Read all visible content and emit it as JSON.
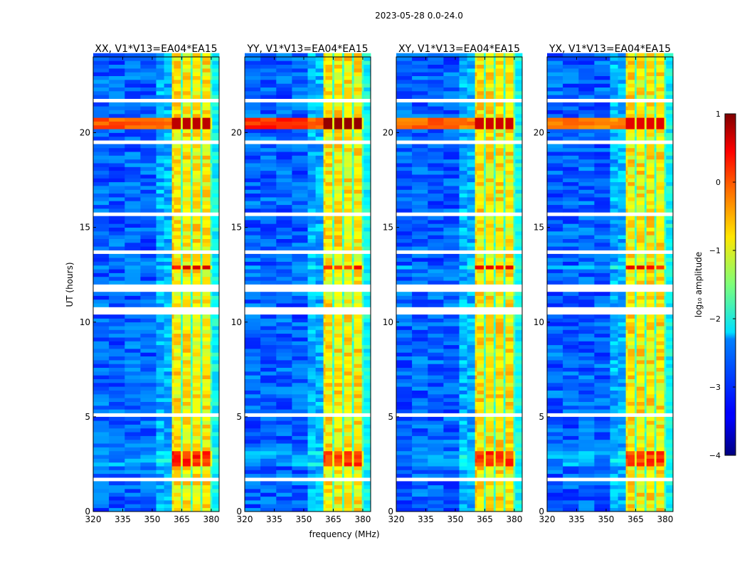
{
  "chart_data": {
    "type": "heatmap",
    "title": "2023-05-28 0.0-24.0",
    "xlabel": "frequency (MHz)",
    "ylabel": "UT (hours)",
    "xlim": [
      320,
      384
    ],
    "ylim": [
      0,
      24
    ],
    "xticks": [
      "320",
      "335",
      "350",
      "365",
      "380"
    ],
    "yticks": [
      "0",
      "5",
      "10",
      "15",
      "20"
    ],
    "panels": [
      {
        "title": "XX, V1*V13=EA04*EA15",
        "peak_log_amp": 0.7,
        "row_spread": 0.3
      },
      {
        "title": "YY, V1*V13=EA04*EA15",
        "peak_log_amp": 0.9,
        "row_spread": 0.6
      },
      {
        "title": "XY, V1*V13=EA04*EA15",
        "peak_log_amp": 0.6,
        "row_spread": 0.2
      },
      {
        "title": "YX, V1*V13=EA04*EA15",
        "peak_log_amp": 0.5,
        "row_spread": 0.1
      }
    ],
    "features": {
      "background_log_amp": -2.9,
      "rfi_band_mhz": [
        360,
        380
      ],
      "rfi_log_amp": -0.8,
      "rfi_gap_lines_mhz": [
        365,
        370,
        375
      ],
      "upper_edge_log_amp": -2.1,
      "flagged_hours": [
        [
          21.6,
          21.85
        ],
        [
          15.55,
          15.8
        ],
        [
          11.6,
          11.95
        ],
        [
          10.45,
          10.85
        ],
        [
          5.05,
          5.2
        ],
        [
          16.75,
          16.85
        ],
        [
          13.6,
          13.7
        ],
        [
          1.7,
          1.8
        ],
        [
          0.35,
          0.45
        ],
        [
          19.4,
          19.5
        ],
        [
          7.2,
          7.3
        ]
      ],
      "bright_hours": [
        {
          "range": [
            20.2,
            20.8
          ],
          "log_amp": 0.6
        },
        {
          "range": [
            12.7,
            13.05
          ],
          "log_amp": 0.2
        },
        {
          "range": [
            2.5,
            3.2
          ],
          "log_amp": 0.0
        }
      ]
    },
    "colorbar": {
      "label": "log₁₀ amplitude",
      "ticks": [
        "1",
        "0",
        "−1",
        "−2",
        "−3",
        "−4"
      ],
      "range": [
        -4,
        1
      ]
    }
  }
}
